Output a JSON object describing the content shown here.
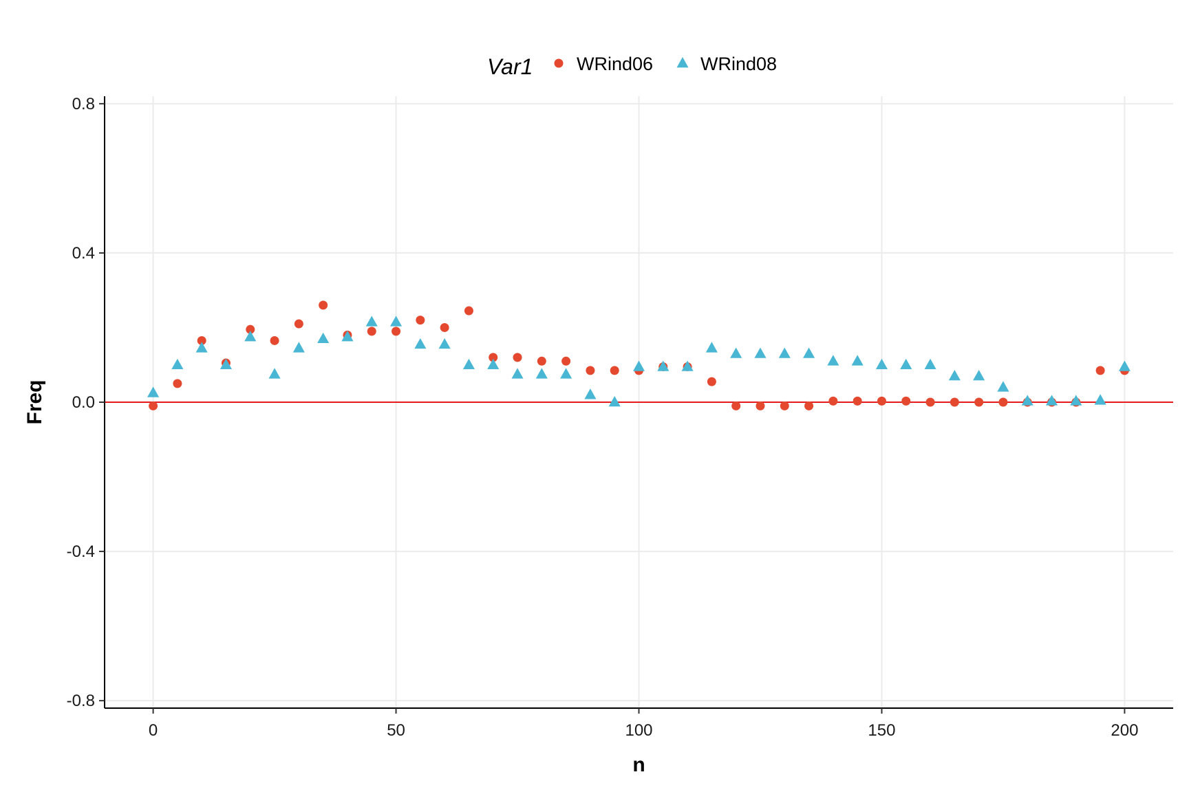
{
  "chart_data": {
    "type": "scatter",
    "title": "",
    "xlabel": "n",
    "ylabel": "Freq",
    "xlim": [
      -10,
      210
    ],
    "ylim": [
      -0.82,
      0.82
    ],
    "xticks": [
      0,
      50,
      100,
      150,
      200
    ],
    "yticks": [
      -0.8,
      -0.4,
      0.0,
      0.4,
      0.8
    ],
    "ytick_labels": [
      "-0.8",
      "-0.4",
      "0.0",
      "0.4",
      "0.8"
    ],
    "grid": true,
    "hline": {
      "y": 0.0,
      "color": "#e41a1c"
    },
    "legend": {
      "title": "Var1",
      "position": "top"
    },
    "series": [
      {
        "name": "WRind06",
        "marker": "circle",
        "color": "#e4492f",
        "x": [
          0,
          5,
          10,
          15,
          20,
          25,
          30,
          35,
          40,
          45,
          50,
          55,
          60,
          65,
          70,
          75,
          80,
          85,
          90,
          95,
          100,
          105,
          110,
          115,
          120,
          125,
          130,
          135,
          140,
          145,
          150,
          155,
          160,
          165,
          170,
          175,
          180,
          185,
          190,
          195,
          200
        ],
        "y": [
          -0.01,
          0.05,
          0.165,
          0.105,
          0.195,
          0.165,
          0.21,
          0.26,
          0.18,
          0.19,
          0.19,
          0.22,
          0.2,
          0.245,
          0.12,
          0.12,
          0.11,
          0.11,
          0.085,
          0.085,
          0.085,
          0.095,
          0.095,
          0.055,
          -0.01,
          -0.01,
          -0.01,
          -0.01,
          0.003,
          0.003,
          0.003,
          0.003,
          0.0,
          0.0,
          0.0,
          0.0,
          0.0,
          0.0,
          0.0,
          0.085,
          0.085
        ]
      },
      {
        "name": "WRind08",
        "marker": "triangle",
        "color": "#49b7d4",
        "x": [
          0,
          5,
          10,
          15,
          20,
          25,
          30,
          35,
          40,
          45,
          50,
          55,
          60,
          65,
          70,
          75,
          80,
          85,
          90,
          95,
          100,
          105,
          110,
          115,
          120,
          125,
          130,
          135,
          140,
          145,
          150,
          155,
          160,
          165,
          170,
          175,
          180,
          185,
          190,
          195,
          200
        ],
        "y": [
          0.025,
          0.1,
          0.145,
          0.1,
          0.175,
          0.075,
          0.145,
          0.17,
          0.175,
          0.215,
          0.215,
          0.155,
          0.155,
          0.1,
          0.1,
          0.075,
          0.075,
          0.075,
          0.02,
          0.0,
          0.095,
          0.095,
          0.095,
          0.145,
          0.13,
          0.13,
          0.13,
          0.13,
          0.11,
          0.11,
          0.1,
          0.1,
          0.1,
          0.07,
          0.07,
          0.04,
          0.003,
          0.003,
          0.003,
          0.005,
          0.095
        ]
      }
    ]
  }
}
